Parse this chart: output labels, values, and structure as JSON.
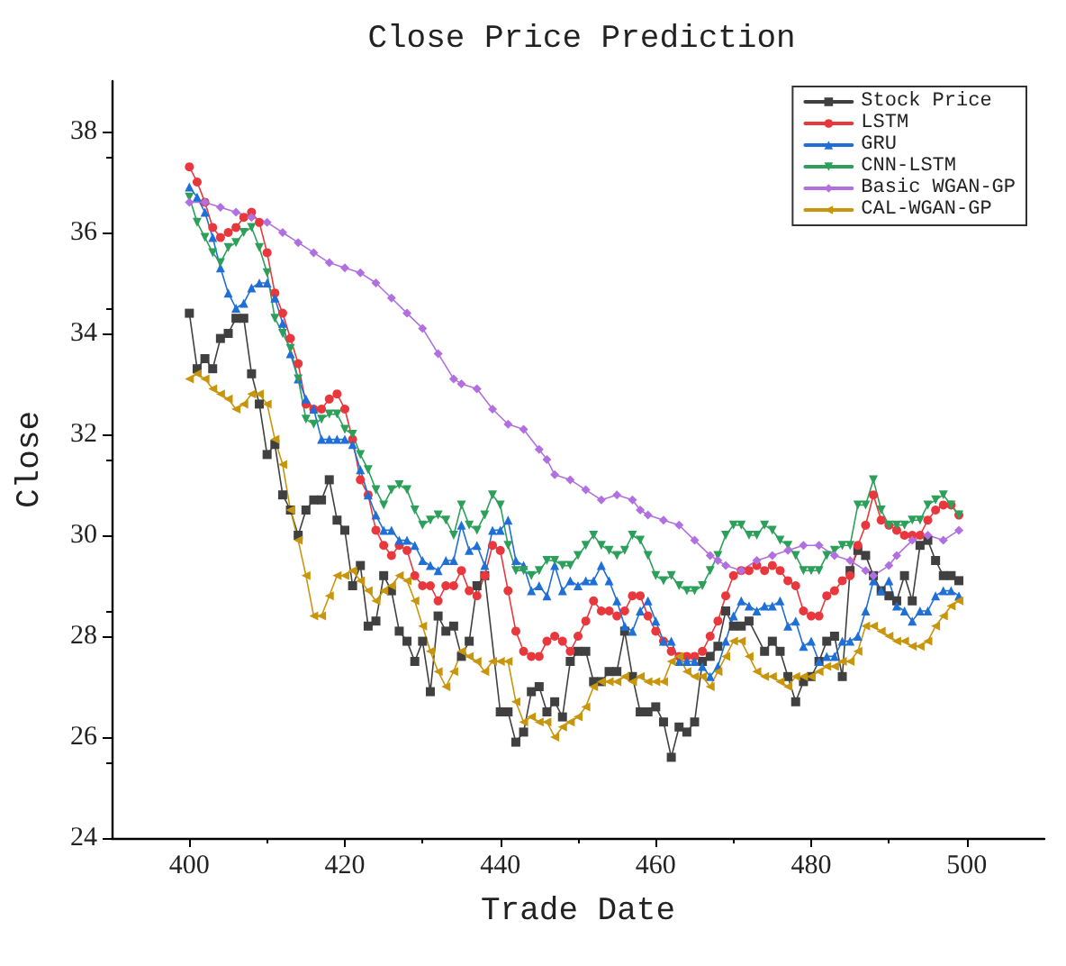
{
  "chart_data": {
    "type": "line",
    "title": "Close Price Prediction",
    "xlabel": "Trade Date",
    "ylabel": "Close",
    "x": [
      400,
      401,
      402,
      403,
      404,
      405,
      406,
      407,
      408,
      409,
      410,
      411,
      412,
      413,
      414,
      415,
      416,
      417,
      418,
      419,
      420,
      421,
      422,
      423,
      424,
      425,
      426,
      427,
      428,
      429,
      430,
      431,
      432,
      433,
      434,
      435,
      436,
      437,
      438,
      439,
      440,
      441,
      442,
      443,
      444,
      445,
      446,
      447,
      448,
      449,
      450,
      451,
      452,
      453,
      454,
      455,
      456,
      457,
      458,
      459,
      460,
      461,
      462,
      463,
      464,
      465,
      466,
      467,
      468,
      469,
      470,
      471,
      472,
      473,
      474,
      475,
      476,
      477,
      478,
      479,
      480,
      481,
      482,
      483,
      484,
      485,
      486,
      487,
      488,
      489,
      490,
      491,
      492,
      493,
      494,
      495,
      496,
      497,
      498,
      499
    ],
    "xlim": [
      390,
      510
    ],
    "xticks": [
      400,
      420,
      440,
      460,
      480,
      500
    ],
    "ylim": [
      24,
      39
    ],
    "yticks": [
      24,
      26,
      28,
      30,
      32,
      34,
      36,
      38
    ],
    "grid": false,
    "legend": "top right",
    "line_style": "solid",
    "series": [
      {
        "name": "Stock Price",
        "color": "#404040",
        "marker": "square",
        "x": [
          400,
          401,
          402,
          403,
          404,
          405,
          406,
          407,
          408,
          409,
          410,
          411,
          412,
          413,
          414,
          415,
          416,
          417,
          418,
          419,
          420,
          421,
          422,
          423,
          424,
          425,
          426,
          427,
          428,
          429,
          430,
          431,
          432,
          433,
          434,
          435,
          436,
          437,
          438,
          440,
          441,
          442,
          443,
          444,
          445,
          446,
          447,
          448,
          449,
          450,
          451,
          452,
          453,
          454,
          455,
          456,
          457,
          458,
          459,
          460,
          461,
          462,
          463,
          464,
          465,
          466,
          467,
          468,
          469,
          470,
          471,
          472,
          474,
          475,
          476,
          477,
          478,
          479,
          480,
          481,
          482,
          483,
          484,
          485,
          486,
          487,
          488,
          489,
          490,
          491,
          492,
          493,
          494,
          495,
          496,
          497,
          498,
          499
        ],
        "values": [
          34.4,
          33.3,
          33.5,
          33.3,
          33.9,
          34.0,
          34.3,
          34.3,
          33.2,
          32.6,
          31.6,
          31.8,
          30.8,
          30.5,
          30.0,
          30.5,
          30.7,
          30.7,
          31.1,
          30.3,
          30.1,
          29.0,
          29.4,
          28.2,
          28.3,
          29.2,
          28.9,
          28.1,
          27.9,
          27.5,
          27.9,
          26.9,
          28.4,
          28.1,
          28.2,
          27.6,
          27.9,
          29.0,
          29.2,
          26.5,
          26.5,
          25.9,
          26.1,
          26.9,
          27.0,
          26.5,
          26.7,
          26.4,
          27.5,
          27.7,
          27.7,
          27.1,
          27.1,
          27.3,
          27.3,
          28.1,
          27.2,
          26.5,
          26.5,
          26.6,
          26.3,
          25.6,
          26.2,
          26.1,
          26.3,
          27.5,
          27.6,
          27.8,
          28.5,
          28.2,
          28.2,
          28.3,
          27.7,
          27.9,
          27.7,
          27.2,
          26.7,
          27.1,
          27.2,
          27.5,
          27.9,
          28.0,
          27.2,
          29.3,
          29.7,
          29.6,
          29.2,
          28.9,
          28.8,
          28.7,
          29.2,
          28.7,
          29.8,
          29.9,
          29.5,
          29.2,
          29.2,
          29.1
        ]
      },
      {
        "name": "LSTM",
        "color": "#e8383d",
        "marker": "circle",
        "values": [
          37.3,
          37.0,
          36.6,
          36.1,
          35.9,
          36.0,
          36.1,
          36.3,
          36.4,
          36.2,
          35.6,
          34.8,
          34.4,
          33.9,
          33.4,
          32.6,
          32.5,
          32.5,
          32.7,
          32.8,
          32.5,
          31.9,
          31.1,
          30.8,
          30.1,
          29.8,
          29.6,
          29.8,
          29.7,
          29.2,
          29.0,
          29.0,
          28.7,
          29.0,
          29.0,
          29.3,
          28.9,
          28.8,
          29.2,
          29.8,
          29.7,
          28.9,
          28.1,
          27.7,
          27.6,
          27.6,
          27.9,
          28.0,
          27.9,
          27.7,
          28.0,
          28.3,
          28.7,
          28.5,
          28.5,
          28.4,
          28.5,
          28.8,
          28.8,
          28.4,
          28.1,
          27.9,
          27.7,
          27.6,
          27.6,
          27.6,
          27.7,
          28.0,
          28.3,
          28.8,
          29.2,
          29.3,
          29.3,
          29.4,
          29.3,
          29.4,
          29.3,
          29.1,
          29.0,
          28.5,
          28.4,
          28.4,
          28.8,
          28.9,
          29.1,
          29.2,
          29.8,
          30.2,
          30.8,
          30.3,
          30.2,
          30.1,
          30.0,
          30.0,
          30.0,
          30.3,
          30.5,
          30.6,
          30.6,
          30.4
        ]
      },
      {
        "name": "GRU",
        "color": "#1f6fd6",
        "marker": "triangle",
        "values": [
          36.9,
          36.7,
          36.4,
          35.9,
          35.3,
          34.8,
          34.5,
          34.6,
          34.9,
          35.0,
          35.0,
          34.7,
          34.2,
          33.6,
          33.1,
          32.7,
          32.5,
          31.9,
          31.9,
          31.9,
          31.9,
          31.8,
          31.3,
          30.8,
          30.4,
          30.1,
          30.1,
          29.9,
          29.9,
          29.8,
          29.5,
          29.4,
          29.3,
          29.5,
          29.5,
          30.2,
          29.7,
          29.8,
          29.4,
          30.1,
          30.1,
          30.3,
          29.5,
          29.4,
          28.9,
          29.0,
          28.8,
          29.4,
          28.9,
          29.1,
          29.0,
          29.1,
          29.1,
          29.4,
          29.1,
          28.7,
          28.2,
          28.1,
          28.5,
          28.7,
          28.3,
          27.9,
          27.9,
          27.5,
          27.5,
          27.5,
          27.4,
          27.2,
          27.4,
          27.9,
          28.4,
          28.7,
          28.6,
          28.5,
          28.6,
          28.6,
          28.7,
          28.2,
          28.3,
          27.8,
          27.9,
          27.5,
          27.6,
          27.6,
          27.9,
          27.9,
          28.0,
          28.5,
          29.1,
          28.9,
          29.1,
          28.6,
          28.5,
          28.3,
          28.5,
          28.5,
          28.8,
          28.9,
          28.9,
          28.8
        ]
      },
      {
        "name": "CNN-LSTM",
        "color": "#2ca05a",
        "marker": "triangle-down",
        "values": [
          36.7,
          36.2,
          35.9,
          35.6,
          35.4,
          35.7,
          35.8,
          36.0,
          36.1,
          35.7,
          35.2,
          34.3,
          34.0,
          33.7,
          33.1,
          32.3,
          32.2,
          32.3,
          32.4,
          32.4,
          32.1,
          32.0,
          31.6,
          31.3,
          30.9,
          30.6,
          30.9,
          31.0,
          30.9,
          30.5,
          30.2,
          30.3,
          30.4,
          30.3,
          30.0,
          30.6,
          30.2,
          30.1,
          30.4,
          30.8,
          30.6,
          29.8,
          29.3,
          29.3,
          29.2,
          29.3,
          29.5,
          29.5,
          29.4,
          29.4,
          29.6,
          29.8,
          30.0,
          29.8,
          29.7,
          29.6,
          29.7,
          30.0,
          29.9,
          29.6,
          29.2,
          29.1,
          29.2,
          29.0,
          28.9,
          28.9,
          29.0,
          29.3,
          29.6,
          30.0,
          30.2,
          30.2,
          30.0,
          30.0,
          30.2,
          30.1,
          29.9,
          29.8,
          29.6,
          29.3,
          29.3,
          29.3,
          29.6,
          29.7,
          29.8,
          29.8,
          30.6,
          30.6,
          31.1,
          30.5,
          30.2,
          30.2,
          30.2,
          30.3,
          30.3,
          30.6,
          30.7,
          30.8,
          30.6,
          30.4
        ]
      },
      {
        "name": "Basic WGAN-GP",
        "color": "#b070e0",
        "marker": "diamond",
        "x": [
          400,
          402,
          404,
          406,
          408,
          410,
          412,
          414,
          416,
          418,
          420,
          422,
          424,
          426,
          428,
          430,
          432,
          434,
          435,
          437,
          439,
          441,
          443,
          445,
          446,
          447,
          449,
          451,
          453,
          455,
          457,
          458,
          459,
          461,
          463,
          465,
          467,
          468,
          469,
          471,
          473,
          475,
          477,
          479,
          481,
          483,
          485,
          487,
          488,
          490,
          491,
          493,
          495,
          497,
          499
        ],
        "values": [
          36.6,
          36.6,
          36.5,
          36.4,
          36.3,
          36.2,
          36.0,
          35.8,
          35.6,
          35.4,
          35.3,
          35.2,
          35.0,
          34.7,
          34.4,
          34.1,
          33.6,
          33.1,
          33.0,
          32.9,
          32.5,
          32.2,
          32.1,
          31.7,
          31.5,
          31.2,
          31.1,
          30.9,
          30.7,
          30.8,
          30.7,
          30.5,
          30.4,
          30.3,
          30.2,
          29.9,
          29.6,
          29.5,
          29.4,
          29.3,
          29.5,
          29.6,
          29.7,
          29.8,
          29.8,
          29.6,
          29.5,
          29.3,
          29.2,
          29.4,
          29.6,
          29.9,
          30.0,
          29.9,
          30.1
        ]
      },
      {
        "name": "CAL-WGAN-GP",
        "color": "#c8960c",
        "marker": "triangle-left",
        "values": [
          33.1,
          33.2,
          33.1,
          32.9,
          32.8,
          32.7,
          32.5,
          32.6,
          32.8,
          32.8,
          32.6,
          31.9,
          31.4,
          30.5,
          29.9,
          29.2,
          28.4,
          28.4,
          28.8,
          29.2,
          29.2,
          29.3,
          29.1,
          28.9,
          28.7,
          28.9,
          29.0,
          29.2,
          29.1,
          28.7,
          28.2,
          27.7,
          27.3,
          27.0,
          27.3,
          27.7,
          27.6,
          27.5,
          27.3,
          27.5,
          27.5,
          27.5,
          26.7,
          26.3,
          26.4,
          26.3,
          26.3,
          26.0,
          26.2,
          26.3,
          26.4,
          26.6,
          27.0,
          27.1,
          27.1,
          27.1,
          27.2,
          27.1,
          27.2,
          27.1,
          27.1,
          27.1,
          27.5,
          27.6,
          27.3,
          27.2,
          27.2,
          27.0,
          27.3,
          27.6,
          27.9,
          27.9,
          27.6,
          27.3,
          27.2,
          27.2,
          27.1,
          27.0,
          27.2,
          27.2,
          27.2,
          27.3,
          27.4,
          27.4,
          27.5,
          27.5,
          27.7,
          28.2,
          28.2,
          28.1,
          28.0,
          27.9,
          27.9,
          27.8,
          27.8,
          27.9,
          28.2,
          28.4,
          28.6,
          28.7
        ]
      }
    ]
  }
}
